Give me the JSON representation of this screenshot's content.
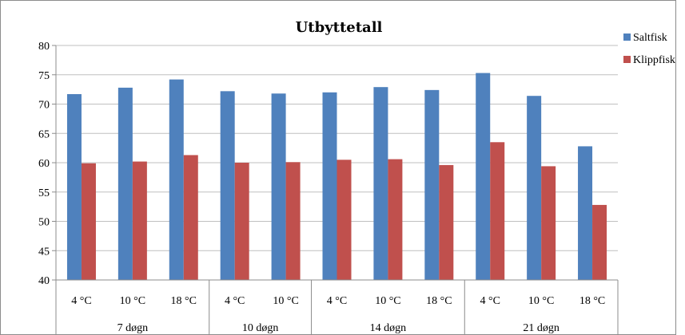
{
  "chart_data": {
    "type": "bar",
    "title": "Utbyttetall",
    "xlabel": "",
    "ylabel": "",
    "ylim": [
      40,
      80
    ],
    "yticks": [
      40,
      45,
      50,
      55,
      60,
      65,
      70,
      75,
      80
    ],
    "grid": true,
    "legend_position": "right",
    "categories": [
      "4 °C",
      "10 °C",
      "18 °C",
      "4 °C",
      "10 °C",
      "4 °C",
      "10 °C",
      "18 °C",
      "4 °C",
      "10 °C",
      "18 °C"
    ],
    "groups": [
      {
        "label": "7 døgn",
        "count": 3
      },
      {
        "label": "10 døgn",
        "count": 2
      },
      {
        "label": "14 døgn",
        "count": 3
      },
      {
        "label": "21 døgn",
        "count": 3
      }
    ],
    "series": [
      {
        "name": "Saltfisk",
        "color": "#4f81bd",
        "values": [
          71.7,
          72.8,
          74.2,
          72.2,
          71.8,
          72.0,
          72.9,
          72.4,
          75.3,
          71.4,
          62.8
        ]
      },
      {
        "name": "Klippfisk",
        "color": "#c0504d",
        "values": [
          59.9,
          60.2,
          61.3,
          60.0,
          60.1,
          60.5,
          60.6,
          59.6,
          63.5,
          59.4,
          52.8
        ]
      }
    ]
  }
}
